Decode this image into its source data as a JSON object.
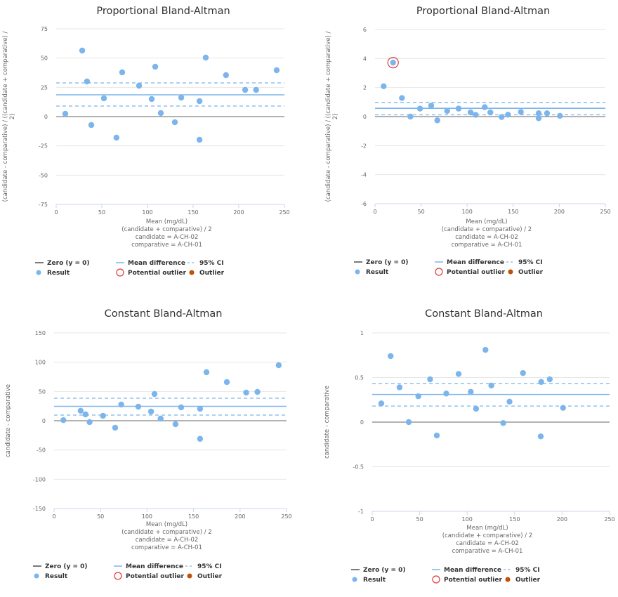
{
  "colors": {
    "result": "#7cb5ec",
    "mean": "#7cb5ec",
    "ci": "#7cb5ec",
    "zero": "#666666",
    "potential_outlier": "#e0383b",
    "outlier": "#c0500a",
    "grid": "#e6e6e6"
  },
  "legend": {
    "zero": "Zero (y = 0)",
    "mean": "Mean difference",
    "ci": "95% CI",
    "result": "Result",
    "potential_outlier": "Potential outlier",
    "outlier": "Outlier"
  },
  "chart_data": [
    {
      "type": "scatter",
      "title": "Proportional Bland-Altman",
      "ylabel_lines": [
        "(candidate - comparative) / ((candidate + comparative) /",
        "2)"
      ],
      "xlabel_lines": [
        "Mean (mg/dL)",
        "(candidate + comparative) / 2",
        "candidate = A-CH-02",
        "comparative = A-CH-01"
      ],
      "xlim": [
        0,
        250
      ],
      "ylim": [
        -75,
        75
      ],
      "xticks": [
        0,
        50,
        100,
        150,
        200,
        250
      ],
      "yticks": [
        -75,
        -50,
        -25,
        0,
        25,
        50,
        75
      ],
      "grid": true,
      "legend_position": "bottom",
      "mean": 18.6,
      "ci": [
        9.0,
        28.8
      ],
      "points": [
        {
          "x": 10,
          "y": 2.4
        },
        {
          "x": 28.5,
          "y": 56.4
        },
        {
          "x": 33.8,
          "y": 30
        },
        {
          "x": 38.5,
          "y": -7.2
        },
        {
          "x": 52.3,
          "y": 15.6
        },
        {
          "x": 66,
          "y": -18
        },
        {
          "x": 72.3,
          "y": 37.8
        },
        {
          "x": 90.8,
          "y": 26.4
        },
        {
          "x": 104.6,
          "y": 15
        },
        {
          "x": 108.5,
          "y": 42.6
        },
        {
          "x": 114.6,
          "y": 3
        },
        {
          "x": 130,
          "y": -4.8
        },
        {
          "x": 137,
          "y": 16.2
        },
        {
          "x": 157,
          "y": 13.2
        },
        {
          "x": 157,
          "y": -19.8
        },
        {
          "x": 163.8,
          "y": 50.4
        },
        {
          "x": 186,
          "y": 35.4
        },
        {
          "x": 207,
          "y": 22.8
        },
        {
          "x": 219,
          "y": 22.8
        },
        {
          "x": 241.5,
          "y": 39.6
        }
      ],
      "potential_outliers": []
    },
    {
      "type": "scatter",
      "title": "Proportional Bland-Altman",
      "ylabel_lines": [
        "(candidate - comparative) / ((candidate + comparative) /",
        "2)"
      ],
      "xlabel_lines": [
        "Mean (mg/dL)",
        "(candidate + comparative) / 2",
        "candidate = A-CH-02",
        "comparative = A-CH-01"
      ],
      "xlim": [
        0,
        250
      ],
      "ylim": [
        -6,
        6
      ],
      "xticks": [
        0,
        50,
        100,
        150,
        200,
        250
      ],
      "yticks": [
        -6,
        -4,
        -2,
        0,
        2,
        4,
        6
      ],
      "grid": true,
      "legend_position": "bottom",
      "mean": 0.57,
      "ci": [
        0.12,
        0.97
      ],
      "points": [
        {
          "x": 9.4,
          "y": 2.09
        },
        {
          "x": 19.6,
          "y": 3.72
        },
        {
          "x": 29.2,
          "y": 1.28
        },
        {
          "x": 38.4,
          "y": 0
        },
        {
          "x": 48.8,
          "y": 0.55
        },
        {
          "x": 61,
          "y": 0.76
        },
        {
          "x": 67.6,
          "y": -0.26
        },
        {
          "x": 78.3,
          "y": 0.39
        },
        {
          "x": 90.7,
          "y": 0.55
        },
        {
          "x": 103.7,
          "y": 0.29
        },
        {
          "x": 109.2,
          "y": 0.12
        },
        {
          "x": 119.1,
          "y": 0.65
        },
        {
          "x": 125.2,
          "y": 0.29
        },
        {
          "x": 137.4,
          "y": -0.03
        },
        {
          "x": 144.3,
          "y": 0.13
        },
        {
          "x": 158.3,
          "y": 0.32
        },
        {
          "x": 177.6,
          "y": 0.23
        },
        {
          "x": 177.6,
          "y": -0.11
        },
        {
          "x": 186.7,
          "y": 0.23
        },
        {
          "x": 200.7,
          "y": 0.05
        }
      ],
      "potential_outliers": [
        {
          "x": 19.6,
          "y": 3.72
        }
      ]
    },
    {
      "type": "scatter",
      "title": "Constant Bland-Altman",
      "ylabel_lines": [
        "candidate - comparative"
      ],
      "xlabel_lines": [
        "Mean (mg/dL)",
        "(candidate + comparative) / 2",
        "candidate = A-CH-02",
        "comparative = A-CH-01"
      ],
      "xlim": [
        0,
        250
      ],
      "ylim": [
        -150,
        150
      ],
      "xticks": [
        0,
        50,
        100,
        150,
        200,
        250
      ],
      "yticks": [
        -150,
        -100,
        -50,
        0,
        50,
        100,
        150
      ],
      "grid": true,
      "legend_position": "bottom",
      "mean": 24.6,
      "ci": [
        9.6,
        38.4
      ],
      "points": [
        {
          "x": 10,
          "y": 1
        },
        {
          "x": 28.6,
          "y": 17
        },
        {
          "x": 33.8,
          "y": 10.8
        },
        {
          "x": 38.2,
          "y": -2.4
        },
        {
          "x": 52.6,
          "y": 8.4
        },
        {
          "x": 65.7,
          "y": -12
        },
        {
          "x": 72.2,
          "y": 27.6
        },
        {
          "x": 90.6,
          "y": 24
        },
        {
          "x": 104.3,
          "y": 15.6
        },
        {
          "x": 108,
          "y": 45.6
        },
        {
          "x": 114.6,
          "y": 3.6
        },
        {
          "x": 130.6,
          "y": -6
        },
        {
          "x": 136.7,
          "y": 22.8
        },
        {
          "x": 157,
          "y": 20.4
        },
        {
          "x": 157,
          "y": -31
        },
        {
          "x": 163.9,
          "y": 82.8
        },
        {
          "x": 185.8,
          "y": 66
        },
        {
          "x": 206.6,
          "y": 48
        },
        {
          "x": 218.7,
          "y": 49.2
        },
        {
          "x": 241.6,
          "y": 94.8
        }
      ],
      "potential_outliers": []
    },
    {
      "type": "scatter",
      "title": "Constant Bland-Altman",
      "ylabel_lines": [
        "candidate - comparative"
      ],
      "xlabel_lines": [
        "Mean (mg/dL)",
        "(candidate + comparative) / 2",
        "candidate = A-CH-02",
        "comparative = A-CH-01"
      ],
      "xlim": [
        0,
        250
      ],
      "ylim": [
        -1,
        1
      ],
      "xticks": [
        0,
        50,
        100,
        150,
        200,
        250
      ],
      "yticks": [
        -1,
        -0.5,
        0,
        0.5,
        1
      ],
      "grid": true,
      "legend_position": "bottom",
      "mean": 0.31,
      "ci": [
        0.18,
        0.43
      ],
      "points": [
        {
          "x": 9.6,
          "y": 0.21
        },
        {
          "x": 19.4,
          "y": 0.74
        },
        {
          "x": 28.8,
          "y": 0.39
        },
        {
          "x": 38.5,
          "y": 0
        },
        {
          "x": 48.6,
          "y": 0.29
        },
        {
          "x": 61,
          "y": 0.48
        },
        {
          "x": 68,
          "y": -0.15
        },
        {
          "x": 78,
          "y": 0.32
        },
        {
          "x": 91,
          "y": 0.54
        },
        {
          "x": 103.8,
          "y": 0.34
        },
        {
          "x": 109.4,
          "y": 0.15
        },
        {
          "x": 119.3,
          "y": 0.81
        },
        {
          "x": 125.5,
          "y": 0.41
        },
        {
          "x": 138,
          "y": -0.01
        },
        {
          "x": 144.6,
          "y": 0.23
        },
        {
          "x": 158.8,
          "y": 0.55
        },
        {
          "x": 177.5,
          "y": -0.16
        },
        {
          "x": 178,
          "y": 0.45
        },
        {
          "x": 187,
          "y": 0.48
        },
        {
          "x": 201,
          "y": 0.16
        }
      ],
      "potential_outliers": []
    }
  ]
}
